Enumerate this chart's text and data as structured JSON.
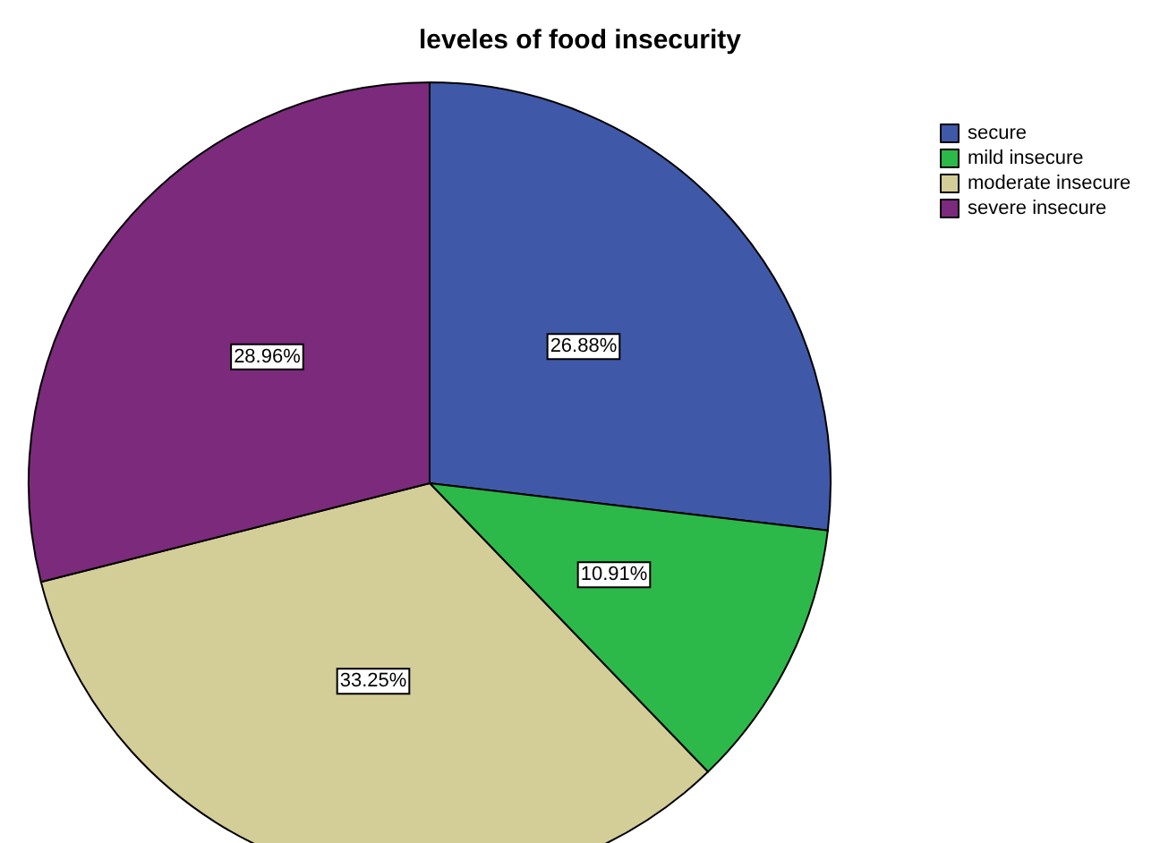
{
  "chart_data": {
    "type": "pie",
    "title": "leveles of food insecurity",
    "categories": [
      "secure",
      "mild insecure",
      "moderate insecure",
      "severe insecure"
    ],
    "values": [
      26.88,
      10.91,
      33.25,
      28.96
    ],
    "colors": [
      "#3f58a8",
      "#2db84a",
      "#d3cd98",
      "#7b2a7c"
    ],
    "value_labels": [
      "26.88%",
      "10.91%",
      "33.25%",
      "28.96%"
    ],
    "legend": "top right"
  }
}
